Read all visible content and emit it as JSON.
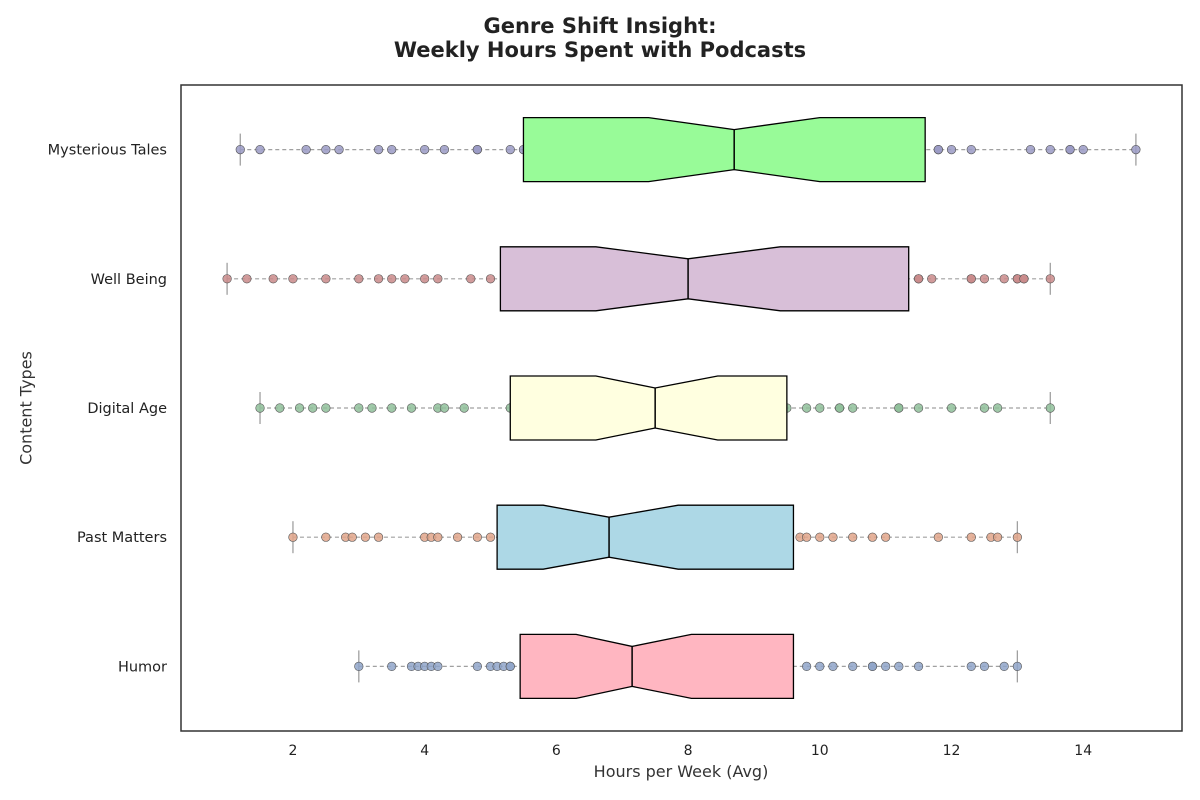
{
  "chart_data": {
    "type": "boxplot",
    "title_line1": "Genre Shift Insight:",
    "title_line2": "Weekly Hours Spent with Podcasts",
    "xlabel": "Hours per Week (Avg)",
    "ylabel": "Content Types",
    "xlim": [
      0.3,
      15.5
    ],
    "xticks": [
      2,
      4,
      6,
      8,
      10,
      12,
      14
    ],
    "grid": false,
    "orientation": "horizontal",
    "notched": true,
    "categories": [
      "Mysterious Tales",
      "Well Being",
      "Digital Age",
      "Past Matters",
      "Humor"
    ],
    "series": [
      {
        "category": "Mysterious Tales",
        "box_color": "#98fb98",
        "point_color": "#9a9ac4",
        "whisker_low": 1.2,
        "q1": 5.5,
        "notch_low": 7.4,
        "median": 8.7,
        "notch_high": 10.0,
        "q3": 11.6,
        "whisker_high": 14.8,
        "points": [
          1.2,
          1.5,
          2.2,
          2.5,
          2.7,
          3.3,
          3.5,
          4.0,
          4.3,
          4.8,
          4.8,
          5.3,
          5.5,
          11.8,
          11.8,
          12.0,
          12.3,
          13.2,
          13.5,
          13.8,
          13.8,
          14.0,
          14.8
        ]
      },
      {
        "category": "Well Being",
        "box_color": "#d8bfd8",
        "point_color": "#c98a8a",
        "whisker_low": 1.0,
        "q1": 5.15,
        "notch_low": 6.6,
        "median": 8.0,
        "notch_high": 9.4,
        "q3": 11.35,
        "whisker_high": 13.5,
        "points": [
          1.0,
          1.3,
          1.7,
          2.0,
          2.5,
          3.0,
          3.3,
          3.5,
          3.7,
          4.0,
          4.2,
          4.7,
          5.0,
          11.5,
          11.5,
          11.7,
          12.3,
          12.3,
          12.5,
          12.8,
          13.0,
          13.0,
          13.1,
          13.1,
          13.5
        ]
      },
      {
        "category": "Digital Age",
        "box_color": "#ffffe0",
        "point_color": "#8fbf9a",
        "whisker_low": 1.5,
        "q1": 5.3,
        "notch_low": 6.6,
        "median": 7.5,
        "notch_high": 8.45,
        "q3": 9.5,
        "whisker_high": 13.5,
        "points": [
          1.5,
          1.8,
          2.1,
          2.3,
          2.5,
          3.0,
          3.2,
          3.5,
          3.8,
          4.2,
          4.3,
          4.6,
          5.3,
          9.5,
          9.8,
          10.0,
          10.3,
          10.3,
          10.5,
          11.2,
          11.2,
          11.5,
          12.0,
          12.5,
          12.7,
          13.5
        ]
      },
      {
        "category": "Past Matters",
        "box_color": "#add8e6",
        "point_color": "#e0a58a",
        "whisker_low": 2.0,
        "q1": 5.1,
        "notch_low": 5.8,
        "median": 6.8,
        "notch_high": 7.85,
        "q3": 9.6,
        "whisker_high": 13.0,
        "points": [
          2.0,
          2.5,
          2.8,
          2.9,
          3.1,
          3.3,
          4.0,
          4.1,
          4.2,
          4.5,
          4.8,
          5.0,
          9.7,
          9.8,
          10.0,
          10.2,
          10.5,
          10.8,
          11.0,
          11.8,
          12.3,
          12.6,
          12.7,
          13.0
        ]
      },
      {
        "category": "Humor",
        "box_color": "#ffb6c1",
        "point_color": "#8fa5c9",
        "whisker_low": 3.0,
        "q1": 5.45,
        "notch_low": 6.3,
        "median": 7.15,
        "notch_high": 8.05,
        "q3": 9.6,
        "whisker_high": 13.0,
        "points": [
          3.0,
          3.5,
          3.8,
          3.9,
          4.0,
          4.1,
          4.2,
          4.8,
          5.0,
          5.1,
          5.2,
          5.3,
          5.3,
          9.8,
          10.0,
          10.2,
          10.5,
          10.8,
          10.8,
          11.0,
          11.2,
          11.5,
          12.3,
          12.5,
          12.8,
          13.0
        ]
      }
    ]
  }
}
